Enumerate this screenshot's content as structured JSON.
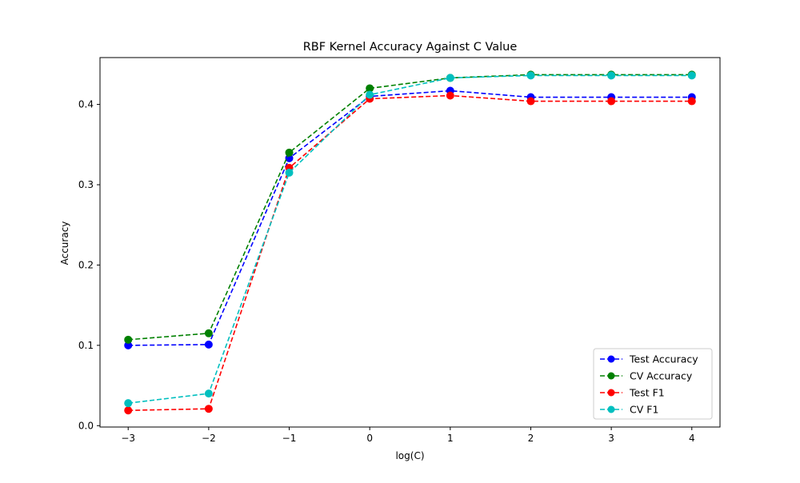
{
  "chart_data": {
    "type": "line",
    "title": "RBF Kernel Accuracy Against C Value",
    "xlabel": "log(C)",
    "ylabel": "Accuracy",
    "x": [
      -3,
      -2,
      -1,
      0,
      1,
      2,
      3,
      4
    ],
    "xlim": [
      -3.35,
      4.35
    ],
    "ylim": [
      -0.0017,
      0.4583
    ],
    "xticks": [
      "−3",
      "−2",
      "−1",
      "0",
      "1",
      "2",
      "3",
      "4"
    ],
    "yticks": [
      "0.0",
      "0.1",
      "0.2",
      "0.3",
      "0.4"
    ],
    "grid": false,
    "legend_position": "lower right",
    "series": [
      {
        "name": "Test Accuracy",
        "color": "#0000ff",
        "values": [
          0.1,
          0.101,
          0.333,
          0.41,
          0.417,
          0.409,
          0.409,
          0.409
        ]
      },
      {
        "name": "CV Accuracy",
        "color": "#008000",
        "values": [
          0.107,
          0.115,
          0.34,
          0.42,
          0.433,
          0.437,
          0.437,
          0.437
        ]
      },
      {
        "name": "Test F1",
        "color": "#ff0000",
        "values": [
          0.019,
          0.021,
          0.321,
          0.407,
          0.411,
          0.404,
          0.404,
          0.404
        ]
      },
      {
        "name": "CV F1",
        "color": "#00bfbf",
        "values": [
          0.028,
          0.04,
          0.315,
          0.412,
          0.433,
          0.436,
          0.436,
          0.436
        ]
      }
    ]
  }
}
